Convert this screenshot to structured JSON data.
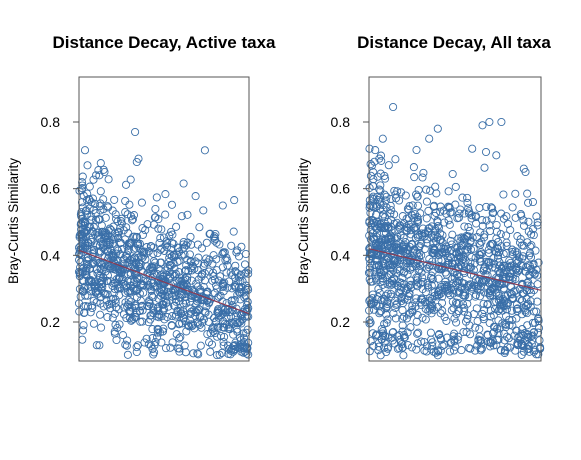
{
  "colors": {
    "points": "#3a6fa8",
    "trend": "#8b3a52",
    "frame": "#555555"
  },
  "chart_data": [
    {
      "type": "scatter",
      "title": "Distance Decay, Active taxa",
      "ylabel": "Bray-Curtis Similarity",
      "xlabel": "",
      "ylim": [
        0.083,
        0.935
      ],
      "xlim": [
        0,
        1
      ],
      "yticks": [
        "0.2",
        "0.4",
        "0.6",
        "0.8"
      ],
      "ytick_values": [
        0.2,
        0.4,
        0.6,
        0.8
      ],
      "xticks": [],
      "grid": false,
      "trendline": {
        "x": [
          0,
          1
        ],
        "y": [
          0.415,
          0.225
        ]
      },
      "cloud": {
        "count": 1100,
        "seed": 11,
        "outliers": [
          [
            0.33,
            0.77
          ],
          [
            0.35,
            0.69
          ],
          [
            0.34,
            0.68
          ],
          [
            0.05,
            0.67
          ],
          [
            0.15,
            0.65
          ],
          [
            0.12,
            0.64
          ],
          [
            0.85,
            0.14
          ],
          [
            0.97,
            0.14
          ],
          [
            0.95,
            0.12
          ],
          [
            0.45,
            0.14
          ],
          [
            0.12,
            0.13
          ]
        ]
      }
    },
    {
      "type": "scatter",
      "title": "Distance Decay, All taxa",
      "ylabel": "Bray-Curtis Similarity",
      "xlabel": "",
      "ylim": [
        0.083,
        0.935
      ],
      "xlim": [
        0,
        1
      ],
      "yticks": [
        "0.2",
        "0.4",
        "0.6",
        "0.8"
      ],
      "ytick_values": [
        0.2,
        0.4,
        0.6,
        0.8
      ],
      "xticks": [],
      "grid": false,
      "trendline": {
        "x": [
          0,
          1
        ],
        "y": [
          0.42,
          0.295
        ]
      },
      "cloud": {
        "count": 1250,
        "seed": 29,
        "outliers": [
          [
            0.14,
            0.845
          ],
          [
            0.66,
            0.79
          ],
          [
            0.68,
            0.71
          ],
          [
            0.74,
            0.7
          ],
          [
            0.7,
            0.8
          ],
          [
            0.77,
            0.8
          ],
          [
            0.6,
            0.72
          ],
          [
            0.4,
            0.78
          ],
          [
            0.35,
            0.75
          ],
          [
            0.08,
            0.75
          ],
          [
            0.9,
            0.66
          ],
          [
            0.91,
            0.65
          ],
          [
            0.98,
            0.49
          ],
          [
            0.96,
            0.17
          ],
          [
            0.92,
            0.19
          ],
          [
            0.8,
            0.25
          ],
          [
            0.1,
            0.11
          ],
          [
            0.2,
            0.1
          ],
          [
            0.4,
            0.1
          ]
        ]
      }
    }
  ]
}
